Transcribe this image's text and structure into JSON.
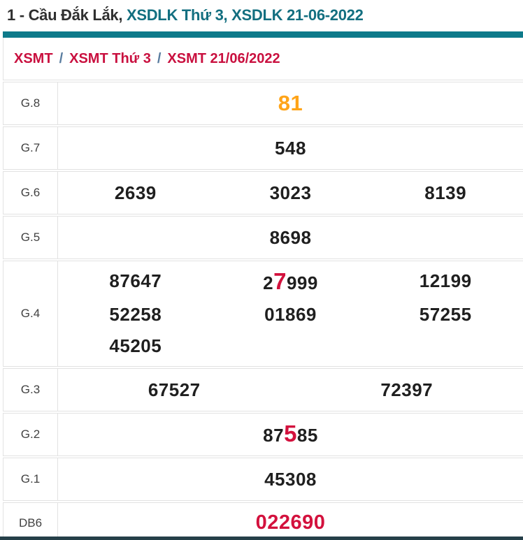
{
  "title": {
    "dark": "1 - Cầu Đắk Lắk, ",
    "teal": "XSDLK Thứ 3, XSDLK 21-06-2022"
  },
  "breadcrumb": {
    "separator": "/",
    "items": [
      "XSMT",
      "XSMT Thứ 3",
      "XSMT 21/06/2022"
    ]
  },
  "colors": {
    "teal_bar": "#0e7a8a",
    "teal_text": "#136f80",
    "crimson": "#d3113d",
    "orange": "#ffa418",
    "value_dark": "#1f1f1f",
    "bottom_bar": "#253f48"
  },
  "results_table": {
    "rows": [
      {
        "label": "G.8",
        "size": "normal",
        "lines": [
          [
            [
              {
                "t": "81",
                "s": "orange"
              }
            ]
          ]
        ]
      },
      {
        "label": "G.7",
        "size": "normal",
        "lines": [
          [
            [
              {
                "t": "548"
              }
            ]
          ]
        ]
      },
      {
        "label": "G.6",
        "size": "normal",
        "lines": [
          [
            [
              {
                "t": "2639"
              }
            ],
            [
              {
                "t": "3023"
              }
            ],
            [
              {
                "t": "8139"
              }
            ]
          ]
        ]
      },
      {
        "label": "G.5",
        "size": "normal",
        "lines": [
          [
            [
              {
                "t": "8698"
              }
            ]
          ]
        ]
      },
      {
        "label": "G.4",
        "size": "tall",
        "lines": [
          [
            [
              {
                "t": "87647"
              }
            ],
            [
              {
                "t": "2"
              },
              {
                "t": "7",
                "s": "red-big"
              },
              {
                "t": "999"
              }
            ],
            [
              {
                "t": "12199"
              }
            ]
          ],
          [
            [
              {
                "t": "52258"
              }
            ],
            [
              {
                "t": "01869"
              }
            ],
            [
              {
                "t": "57255"
              }
            ]
          ],
          [
            [
              {
                "t": "45205"
              }
            ],
            [],
            []
          ]
        ]
      },
      {
        "label": "G.3",
        "size": "normal",
        "lines": [
          [
            [
              {
                "t": "67527"
              }
            ],
            [
              {
                "t": "72397"
              }
            ]
          ]
        ]
      },
      {
        "label": "G.2",
        "size": "normal",
        "lines": [
          [
            [
              {
                "t": "87"
              },
              {
                "t": "5",
                "s": "red-big"
              },
              {
                "t": "85"
              }
            ]
          ]
        ]
      },
      {
        "label": "G.1",
        "size": "normal",
        "lines": [
          [
            [
              {
                "t": "45308"
              }
            ]
          ]
        ]
      },
      {
        "label": "DB6",
        "size": "short",
        "lines": [
          [
            [
              {
                "t": "022690",
                "s": "red"
              }
            ]
          ]
        ]
      }
    ]
  }
}
